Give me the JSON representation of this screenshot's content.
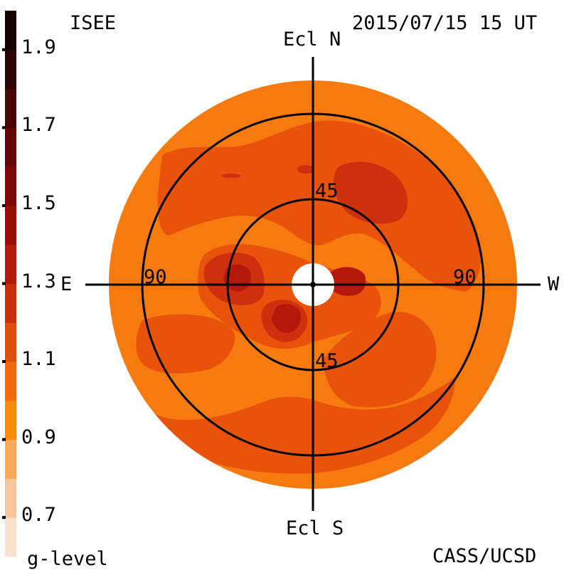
{
  "header": {
    "left_label": "ISEE",
    "timestamp": "2015/07/15 15 UT"
  },
  "footer": {
    "left_label": "g-level",
    "right_label": "CASS/UCSD"
  },
  "directions": {
    "north": "Ecl N",
    "south": "Ecl S",
    "east": "E",
    "west": "W"
  },
  "ring_labels": {
    "inner_top": "45",
    "inner_bottom": "45",
    "outer_left": "90",
    "outer_right": "90"
  },
  "colorbar": {
    "tick_labels": [
      "1.9",
      "1.7",
      "1.5",
      "1.3",
      "1.1",
      "0.9",
      "0.7"
    ],
    "min": 0.6,
    "max": 2.0,
    "bands": [
      {
        "from": 0.6,
        "to": 0.7,
        "color": "#fbe2cc"
      },
      {
        "from": 0.7,
        "to": 0.8,
        "color": "#f7c79b"
      },
      {
        "from": 0.8,
        "to": 0.9,
        "color": "#fba85a"
      },
      {
        "from": 0.9,
        "to": 1.0,
        "color": "#fc8a0c"
      },
      {
        "from": 1.0,
        "to": 1.1,
        "color": "#f26a10"
      },
      {
        "from": 1.1,
        "to": 1.2,
        "color": "#e04e0c"
      },
      {
        "from": 1.2,
        "to": 1.3,
        "color": "#c8300c"
      },
      {
        "from": 1.3,
        "to": 1.4,
        "color": "#b11c0a"
      },
      {
        "from": 1.4,
        "to": 1.5,
        "color": "#9a0e08"
      },
      {
        "from": 1.5,
        "to": 1.6,
        "color": "#800707"
      },
      {
        "from": 1.6,
        "to": 1.7,
        "color": "#660606"
      },
      {
        "from": 1.7,
        "to": 1.8,
        "color": "#4a0505"
      },
      {
        "from": 1.8,
        "to": 1.9,
        "color": "#2e0303"
      },
      {
        "from": 1.9,
        "to": 2.0,
        "color": "#140101"
      }
    ]
  },
  "map_colors": {
    "background": "#f77a0e",
    "level_mid": "#e8520a",
    "level_high": "#cc300c",
    "level_peak": "#b4180a"
  }
}
